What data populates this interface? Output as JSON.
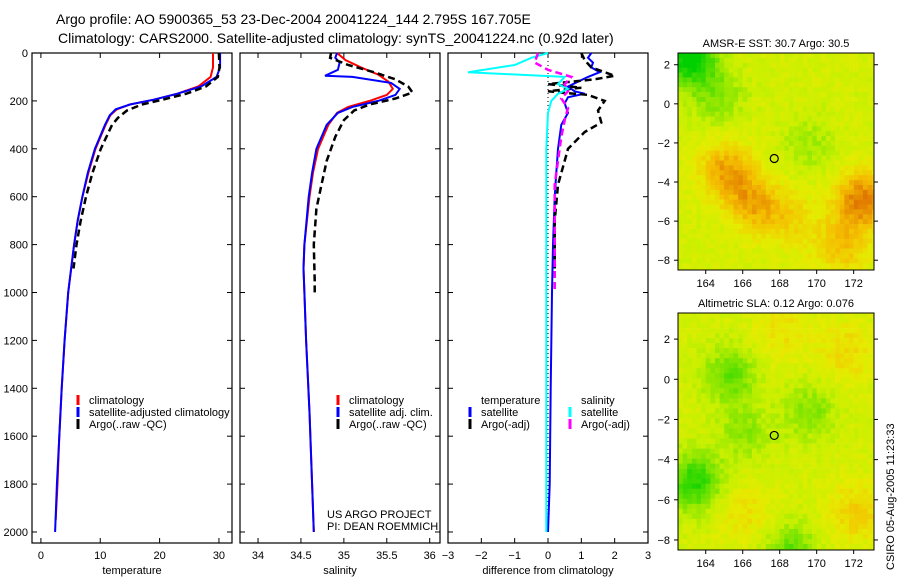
{
  "header": {
    "line1": "Argo profile: AO 5900365_53 23-Dec-2004 20041224_144 2.795S 167.705E",
    "line2": "Climatology: CARS2000. Satellite-adjusted climatology: synTS_20041224.nc (0.92d later)"
  },
  "footer_stamp": "CSIRO 05-Aug-2005 11:23:33",
  "project_note": [
    "US ARGO PROJECT",
    "PI: DEAN ROEMMICH"
  ],
  "colors": {
    "climatology": "#ff0000",
    "satellite": "#0000ff",
    "argo": "#000000",
    "sal_satellite": "#00ffff",
    "sal_argo": "#ff00ff"
  },
  "chart_data": [
    {
      "type": "line",
      "id": "temperature",
      "xlabel": "temperature",
      "ylabel": "",
      "xlim": [
        -1.5,
        32.2
      ],
      "ylim": [
        0,
        2046
      ],
      "xticks": [
        0,
        10,
        20,
        30
      ],
      "yticks": [
        0,
        200,
        400,
        600,
        800,
        1000,
        1200,
        1400,
        1600,
        1800,
        2000
      ],
      "legend": {
        "position": "lower-middle",
        "entries": [
          "climatology",
          "satellite-adjusted climatology",
          "Argo(..raw -QC)"
        ]
      },
      "series": [
        {
          "name": "climatology",
          "color": "#ff0000",
          "dash": false,
          "points": [
            [
              0,
              29.0
            ],
            [
              60,
              29.0
            ],
            [
              100,
              28.6
            ],
            [
              140,
              26.5
            ],
            [
              170,
              23
            ],
            [
              195,
              19
            ],
            [
              215,
              15
            ],
            [
              235,
              12.8
            ],
            [
              260,
              11.7
            ],
            [
              300,
              10.9
            ],
            [
              400,
              9.2
            ],
            [
              500,
              8.0
            ],
            [
              600,
              7.0
            ],
            [
              700,
              6.2
            ],
            [
              800,
              5.6
            ],
            [
              1000,
              4.6
            ],
            [
              1200,
              4.0
            ],
            [
              1400,
              3.5
            ],
            [
              1600,
              3.1
            ],
            [
              1800,
              2.8
            ],
            [
              1950,
              2.5
            ]
          ]
        },
        {
          "name": "satellite-adjusted climatology",
          "color": "#0000ff",
          "dash": false,
          "points": [
            [
              0,
              30.2
            ],
            [
              60,
              30.2
            ],
            [
              100,
              29.6
            ],
            [
              140,
              27.0
            ],
            [
              170,
              23
            ],
            [
              195,
              19
            ],
            [
              215,
              15
            ],
            [
              235,
              12.6
            ],
            [
              260,
              11.6
            ],
            [
              300,
              10.8
            ],
            [
              400,
              9.1
            ],
            [
              500,
              7.9
            ],
            [
              600,
              7.0
            ],
            [
              700,
              6.2
            ],
            [
              800,
              5.6
            ],
            [
              1000,
              4.6
            ],
            [
              1200,
              4.0
            ],
            [
              1400,
              3.5
            ],
            [
              1600,
              3.1
            ],
            [
              1800,
              2.7
            ],
            [
              2000,
              2.4
            ]
          ]
        },
        {
          "name": "Argo(..raw -QC)",
          "color": "#000000",
          "dash": true,
          "points": [
            [
              0,
              30.0
            ],
            [
              60,
              30.1
            ],
            [
              100,
              29.8
            ],
            [
              140,
              27.8
            ],
            [
              170,
              24.5
            ],
            [
              195,
              20.5
            ],
            [
              215,
              17
            ],
            [
              240,
              14.5
            ],
            [
              270,
              13
            ],
            [
              300,
              12
            ],
            [
              400,
              10.1
            ],
            [
              500,
              8.7
            ],
            [
              600,
              7.6
            ],
            [
              700,
              6.7
            ],
            [
              800,
              6.0
            ],
            [
              900,
              5.5
            ]
          ]
        }
      ]
    },
    {
      "type": "line",
      "id": "salinity",
      "xlabel": "salinity",
      "xlim": [
        33.79,
        36.12
      ],
      "ylim": [
        0,
        2046
      ],
      "xticks": [
        34,
        34.5,
        35,
        35.5,
        36
      ],
      "yticks": [
        0,
        200,
        400,
        600,
        800,
        1000,
        1200,
        1400,
        1600,
        1800,
        2000
      ],
      "legend": {
        "position": "lower-right",
        "entries": [
          "climatology",
          "satellite adj. clim.",
          "Argo(..raw -QC)"
        ]
      },
      "series": [
        {
          "name": "climatology",
          "color": "#ff0000",
          "dash": false,
          "points": [
            [
              0,
              34.92
            ],
            [
              30,
              35.02
            ],
            [
              60,
              35.2
            ],
            [
              90,
              35.4
            ],
            [
              120,
              35.52
            ],
            [
              150,
              35.57
            ],
            [
              175,
              35.5
            ],
            [
              200,
              35.3
            ],
            [
              225,
              35.05
            ],
            [
              250,
              34.92
            ],
            [
              300,
              34.82
            ],
            [
              400,
              34.7
            ],
            [
              500,
              34.64
            ],
            [
              600,
              34.6
            ],
            [
              800,
              34.54
            ],
            [
              900,
              34.53
            ],
            [
              1000,
              34.54
            ],
            [
              1200,
              34.56
            ],
            [
              1500,
              34.6
            ],
            [
              1800,
              34.63
            ],
            [
              2000,
              34.65
            ]
          ]
        },
        {
          "name": "satellite adj. clim.",
          "color": "#0000ff",
          "dash": false,
          "points": [
            [
              0,
              34.92
            ],
            [
              20,
              34.9
            ],
            [
              40,
              34.95
            ],
            [
              70,
              34.93
            ],
            [
              95,
              34.78
            ],
            [
              100,
              35.1
            ],
            [
              125,
              35.55
            ],
            [
              150,
              35.65
            ],
            [
              175,
              35.6
            ],
            [
              200,
              35.4
            ],
            [
              225,
              35.1
            ],
            [
              250,
              34.93
            ],
            [
              300,
              34.8
            ],
            [
              400,
              34.68
            ],
            [
              500,
              34.63
            ],
            [
              600,
              34.59
            ],
            [
              800,
              34.54
            ],
            [
              900,
              34.53
            ],
            [
              1000,
              34.54
            ],
            [
              1200,
              34.56
            ],
            [
              1500,
              34.6
            ],
            [
              1800,
              34.63
            ],
            [
              2000,
              34.65
            ]
          ]
        },
        {
          "name": "Argo(..raw -QC)",
          "color": "#000000",
          "dash": true,
          "points": [
            [
              0,
              34.85
            ],
            [
              20,
              34.84
            ],
            [
              50,
              35.05
            ],
            [
              80,
              35.35
            ],
            [
              110,
              35.6
            ],
            [
              140,
              35.75
            ],
            [
              165,
              35.8
            ],
            [
              190,
              35.6
            ],
            [
              215,
              35.3
            ],
            [
              240,
              35.12
            ],
            [
              280,
              35.0
            ],
            [
              350,
              34.9
            ],
            [
              450,
              34.8
            ],
            [
              550,
              34.74
            ],
            [
              650,
              34.68
            ],
            [
              800,
              34.65
            ],
            [
              950,
              34.66
            ],
            [
              1000,
              34.66
            ]
          ]
        }
      ]
    },
    {
      "type": "line",
      "id": "difference",
      "xlabel": "difference from climatology",
      "xlim": [
        -3,
        3
      ],
      "ylim": [
        0,
        2046
      ],
      "xticks": [
        -3,
        -2,
        -1,
        0,
        1,
        2,
        3
      ],
      "yticks": [
        0,
        200,
        400,
        600,
        800,
        1000,
        1200,
        1400,
        1600,
        1800,
        2000
      ],
      "legend": {
        "position": "lower",
        "groups": [
          {
            "title": "temperature",
            "entries": [
              "satellite",
              "Argo(-adj)"
            ]
          },
          {
            "title": "salinity",
            "entries": [
              "satellite",
              "Argo(-adj)"
            ]
          }
        ]
      },
      "series": [
        {
          "name": "temperature satellite",
          "color": "#0000ff",
          "dash": false,
          "points": [
            [
              0,
              1.3
            ],
            [
              20,
              1.2
            ],
            [
              40,
              1.35
            ],
            [
              60,
              1.3
            ],
            [
              80,
              1.55
            ],
            [
              100,
              1.2
            ],
            [
              120,
              0.9
            ],
            [
              140,
              0.6
            ],
            [
              160,
              0.8
            ],
            [
              170,
              1.1
            ],
            [
              185,
              0.6
            ],
            [
              210,
              0.5
            ],
            [
              250,
              0.6
            ],
            [
              300,
              0.4
            ],
            [
              400,
              0.3
            ],
            [
              500,
              0.25
            ],
            [
              600,
              0.2
            ],
            [
              800,
              0.15
            ],
            [
              1000,
              0.12
            ],
            [
              1400,
              0.08
            ],
            [
              1800,
              0.05
            ],
            [
              2000,
              0.0
            ]
          ]
        },
        {
          "name": "temperature Argo(-adj)",
          "color": "#000000",
          "dash": true,
          "points": [
            [
              0,
              1.0
            ],
            [
              30,
              1.1
            ],
            [
              60,
              1.3
            ],
            [
              95,
              2.0
            ],
            [
              110,
              1.4
            ],
            [
              130,
              0.0
            ],
            [
              145,
              1.0
            ],
            [
              160,
              0.0
            ],
            [
              175,
              1.2
            ],
            [
              200,
              1.7
            ],
            [
              240,
              1.5
            ],
            [
              290,
              1.6
            ],
            [
              330,
              1.1
            ],
            [
              400,
              0.6
            ],
            [
              450,
              0.5
            ],
            [
              550,
              0.3
            ],
            [
              700,
              0.2
            ],
            [
              900,
              0.2
            ]
          ]
        },
        {
          "name": "salinity satellite",
          "color": "#00ffff",
          "dash": false,
          "points": [
            [
              0,
              0.0
            ],
            [
              20,
              -0.5
            ],
            [
              50,
              -1.0
            ],
            [
              80,
              -2.4
            ],
            [
              100,
              0.5
            ],
            [
              130,
              0.3
            ],
            [
              150,
              0.6
            ],
            [
              170,
              0.3
            ],
            [
              200,
              0.1
            ],
            [
              250,
              0.0
            ],
            [
              400,
              -0.05
            ],
            [
              600,
              -0.05
            ],
            [
              800,
              -0.05
            ],
            [
              1000,
              -0.05
            ],
            [
              1500,
              -0.05
            ],
            [
              2000,
              -0.05
            ]
          ]
        },
        {
          "name": "salinity Argo(-adj)",
          "color": "#ff00ff",
          "dash": true,
          "points": [
            [
              0,
              -0.3
            ],
            [
              40,
              -0.4
            ],
            [
              70,
              0.0
            ],
            [
              100,
              0.7
            ],
            [
              130,
              0.5
            ],
            [
              160,
              0.6
            ],
            [
              190,
              0.4
            ],
            [
              230,
              0.6
            ],
            [
              280,
              0.5
            ],
            [
              350,
              0.4
            ],
            [
              450,
              0.3
            ],
            [
              550,
              0.2
            ],
            [
              700,
              0.2
            ],
            [
              900,
              0.2
            ],
            [
              1000,
              0.2
            ]
          ]
        }
      ]
    },
    {
      "type": "heatmap",
      "id": "sst-map",
      "title": "AMSR-E SST: 30.7 Argo: 30.5",
      "xlim": [
        162.5,
        173.1
      ],
      "ylim": [
        -8.5,
        2.6
      ],
      "xticks": [
        164,
        166,
        168,
        170,
        172
      ],
      "yticks": [
        2,
        0,
        -2,
        -4,
        -6,
        -8
      ],
      "argo_position": [
        167.705,
        -2.795
      ],
      "warm_centers": [
        [
          165,
          -3.3,
          1.0
        ],
        [
          166.5,
          -5.0,
          0.9
        ],
        [
          172.3,
          -4.8,
          1.3
        ],
        [
          171.2,
          -7.2,
          0.7
        ],
        [
          168.5,
          -5.8,
          0.5
        ]
      ],
      "cool_centers": [
        [
          163,
          2.5,
          1.6
        ],
        [
          164.5,
          0.5,
          0.6
        ],
        [
          169.5,
          -2,
          0.4
        ]
      ]
    },
    {
      "type": "heatmap",
      "id": "sla-map",
      "title": "Altimetric SLA: 0.12 Argo: 0.076",
      "xlim": [
        162.5,
        173.1
      ],
      "ylim": [
        -8.5,
        3.3
      ],
      "xticks": [
        164,
        166,
        168,
        170,
        172
      ],
      "yticks": [
        2,
        0,
        -2,
        -4,
        -6,
        -8
      ],
      "argo_position": [
        167.705,
        -2.795
      ],
      "warm_centers": [
        [
          172,
          -6.5,
          0.6
        ],
        [
          171.5,
          1.5,
          0.5
        ],
        [
          168,
          2.5,
          0.4
        ],
        [
          166,
          -6.5,
          0.4
        ]
      ],
      "cool_centers": [
        [
          163.3,
          -5,
          1.2
        ],
        [
          165.2,
          0.3,
          0.8
        ],
        [
          168.5,
          -8.5,
          0.8
        ],
        [
          169.5,
          -1.5,
          0.6
        ],
        [
          166,
          -2.5,
          0.5
        ]
      ]
    }
  ]
}
